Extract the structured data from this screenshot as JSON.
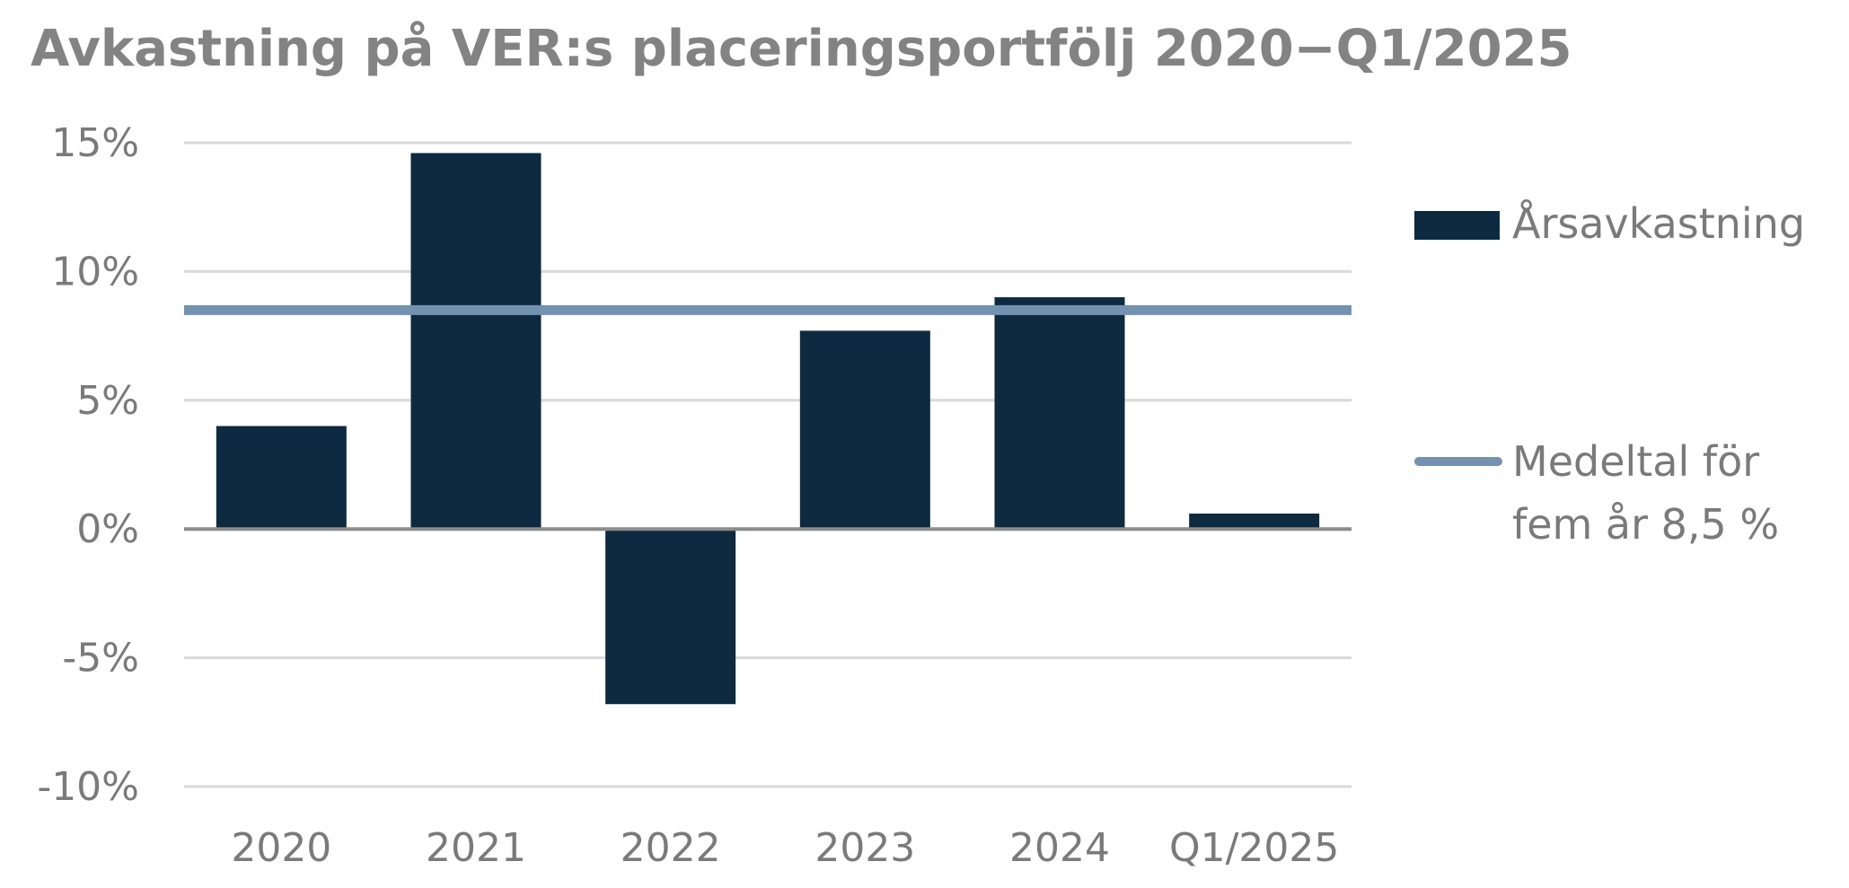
{
  "colors": {
    "bar": "#0e2a40",
    "line": "#7391b0",
    "grid": "#d9d9d9",
    "zero_axis": "#8c8c8c",
    "text": "#7a7a7a",
    "title": "#838383"
  },
  "chart_data": {
    "type": "bar",
    "title": "Avkastning på VER:s placeringsportfölj 2020−Q1/2025",
    "categories": [
      "2020",
      "2021",
      "2022",
      "2023",
      "2024",
      "Q1/2025"
    ],
    "series": [
      {
        "name": "Årsavkastning",
        "type": "bar",
        "values": [
          4.0,
          14.6,
          -6.8,
          7.7,
          9.0,
          0.6
        ]
      },
      {
        "name": "Medeltal för fem år 8,5 %",
        "type": "line",
        "value": 8.5
      }
    ],
    "ylim": [
      -10,
      15
    ],
    "yticks": [
      15,
      10,
      5,
      0,
      -5,
      -10
    ],
    "ytick_labels": [
      "15%",
      "10%",
      "5%",
      "0%",
      "-5%",
      "-10%"
    ],
    "grid": true,
    "legend_position": "right",
    "legend": [
      {
        "lines": [
          "Årsavkastning"
        ]
      },
      {
        "lines": [
          "Medeltal för",
          "fem år 8,5 %"
        ]
      }
    ]
  }
}
